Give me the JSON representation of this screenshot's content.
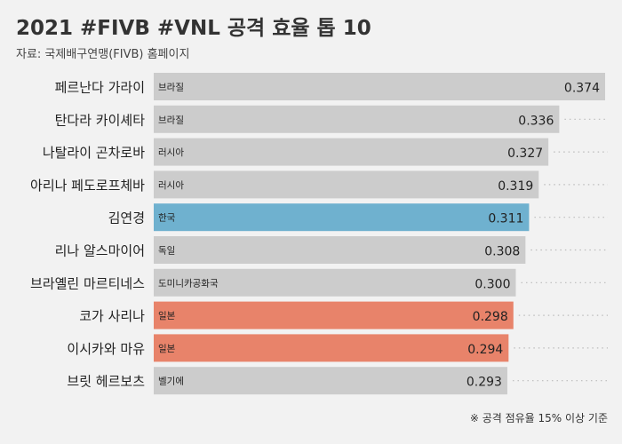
{
  "title": "2021 #FIVB #VNL 공격 효율 톱 10",
  "subtitle": "자료: 국제배구연맹(FIVB) 홈페이지",
  "footnote": "※ 공격 점유율 15% 이상 기준",
  "colors": {
    "default": "#cccccc",
    "korea": "#6fb1cf",
    "japan": "#e8836a",
    "background": "#f2f2f2"
  },
  "chart_data": {
    "type": "bar",
    "orientation": "horizontal",
    "categories": [
      "페르난다 가라이",
      "탄다라 카이셰타",
      "나탈라이 곤차로바",
      "아리나 페도로프체바",
      "김연경",
      "리나 알스마이어",
      "브라옐린 마르티네스",
      "코가 사리나",
      "이시카와 마유",
      "브릿 헤르보츠"
    ],
    "countries": [
      "브라질",
      "브라질",
      "러시아",
      "러시아",
      "한국",
      "독일",
      "도미니카공화국",
      "일본",
      "일본",
      "벨기에"
    ],
    "values": [
      0.374,
      0.336,
      0.327,
      0.319,
      0.311,
      0.308,
      0.3,
      0.298,
      0.294,
      0.293
    ],
    "value_labels": [
      "0.374",
      "0.336",
      "0.327",
      "0.319",
      "0.311",
      "0.308",
      "0.300",
      "0.298",
      "0.294",
      "0.293"
    ],
    "highlight": [
      "default",
      "default",
      "default",
      "default",
      "korea",
      "default",
      "default",
      "japan",
      "japan",
      "default"
    ],
    "xlim": [
      0,
      0.374
    ],
    "grid": false,
    "legend": "none"
  }
}
